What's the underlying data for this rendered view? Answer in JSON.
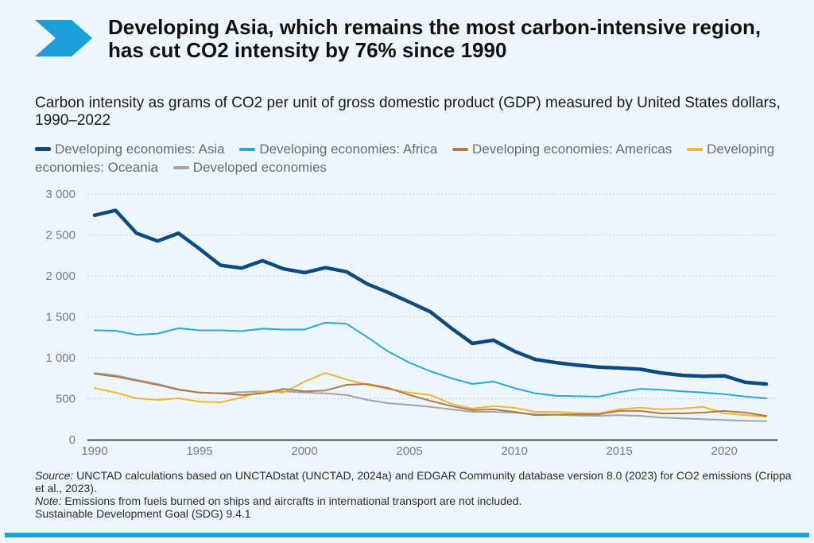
{
  "header": {
    "logo_icon": "chevron-right-icon",
    "title": "Developing Asia, which remains the most carbon-intensive region, has cut CO2 intensity by 76% since 1990",
    "subtitle": "Carbon intensity as grams of CO2 per unit of gross domestic product (GDP) measured by United States dollars, 1990–2022"
  },
  "colors": {
    "accent": "#1a9fdb",
    "background": "#eef6fd"
  },
  "chart_data": {
    "type": "line",
    "title": "Developing Asia, which remains the most carbon-intensive region, has cut CO2 intensity by 76% since 1990",
    "subtitle": "Carbon intensity as grams of CO2 per unit of gross domestic product (GDP) measured by United States dollars, 1990–2022",
    "xlabel": "",
    "ylabel": "",
    "xlim": [
      1990,
      2022
    ],
    "ylim": [
      0,
      3000
    ],
    "x_ticks": [
      1990,
      1995,
      2000,
      2005,
      2010,
      2015,
      2020
    ],
    "x_tick_labels": [
      "1990",
      "1995",
      "2000",
      "2005",
      "2010",
      "2015",
      "2020"
    ],
    "y_ticks": [
      0,
      500,
      1000,
      1500,
      2000,
      2500,
      3000
    ],
    "y_tick_labels": [
      "0",
      "500",
      "1 000",
      "1 500",
      "2 000",
      "2 500",
      "3 000"
    ],
    "grid": "horizontal-dotted",
    "legend_position": "top",
    "x": [
      1990,
      1991,
      1992,
      1993,
      1994,
      1995,
      1996,
      1997,
      1998,
      1999,
      2000,
      2001,
      2002,
      2003,
      2004,
      2005,
      2006,
      2007,
      2008,
      2009,
      2010,
      2011,
      2012,
      2013,
      2014,
      2015,
      2016,
      2017,
      2018,
      2019,
      2020,
      2021,
      2022
    ],
    "series": [
      {
        "name": "Developing economies: Asia",
        "color": "#0e4a80",
        "emphasis": true,
        "values": [
          2740,
          2800,
          2520,
          2425,
          2520,
          2330,
          2130,
          2095,
          2185,
          2085,
          2040,
          2100,
          2050,
          1900,
          1795,
          1680,
          1560,
          1360,
          1175,
          1215,
          1080,
          980,
          940,
          910,
          885,
          875,
          860,
          815,
          785,
          775,
          780,
          700,
          680
        ]
      },
      {
        "name": "Developing economies: Africa",
        "color": "#26a9d8",
        "values": [
          1335,
          1330,
          1280,
          1295,
          1360,
          1335,
          1335,
          1325,
          1355,
          1345,
          1345,
          1430,
          1415,
          1250,
          1075,
          940,
          835,
          750,
          680,
          710,
          630,
          565,
          535,
          530,
          525,
          580,
          620,
          610,
          590,
          575,
          555,
          525,
          505
        ]
      },
      {
        "name": "Developing economies: Americas",
        "color": "#b07a45",
        "values": [
          805,
          770,
          720,
          670,
          610,
          575,
          565,
          545,
          565,
          620,
          590,
          600,
          670,
          680,
          630,
          545,
          475,
          410,
          360,
          370,
          340,
          300,
          305,
          310,
          310,
          350,
          350,
          320,
          320,
          330,
          350,
          330,
          290
        ]
      },
      {
        "name": "Developing economies: Oceania",
        "color": "#f2b632",
        "values": [
          630,
          575,
          505,
          485,
          505,
          465,
          455,
          515,
          590,
          575,
          710,
          815,
          735,
          670,
          620,
          575,
          545,
          435,
          380,
          410,
          390,
          340,
          340,
          325,
          320,
          370,
          390,
          370,
          380,
          400,
          320,
          300,
          280
        ]
      },
      {
        "name": "Developed economies",
        "color": "#a3a3a3",
        "values": [
          815,
          785,
          730,
          680,
          615,
          575,
          565,
          580,
          590,
          590,
          575,
          565,
          545,
          485,
          445,
          425,
          400,
          370,
          340,
          340,
          330,
          310,
          305,
          295,
          290,
          300,
          290,
          270,
          260,
          250,
          240,
          230,
          225
        ]
      }
    ]
  },
  "legend": {
    "items": [
      {
        "label": "Developing economies: Asia",
        "color": "#0e4a80"
      },
      {
        "label": "Developing economies: Africa",
        "color": "#26a9d8"
      },
      {
        "label": "Developing economies: Americas",
        "color": "#b07a45"
      },
      {
        "label": "Developing economies: Oceania",
        "color": "#f2b632"
      },
      {
        "label": "Developed economies",
        "color": "#a3a3a3"
      }
    ]
  },
  "footer": {
    "source_label": "Source:",
    "source_text": " UNCTAD calculations based on UNCTADstat (UNCTAD, 2024a) and EDGAR Community database version 8.0 (2023) for CO2 emissions (Crippa et al., 2023).",
    "note_label": "Note:",
    "note_text": " Emissions from fuels burned on ships and aircrafts in international transport are not included.",
    "sdg_text": "Sustainable Development Goal (SDG) 9.4.1"
  }
}
